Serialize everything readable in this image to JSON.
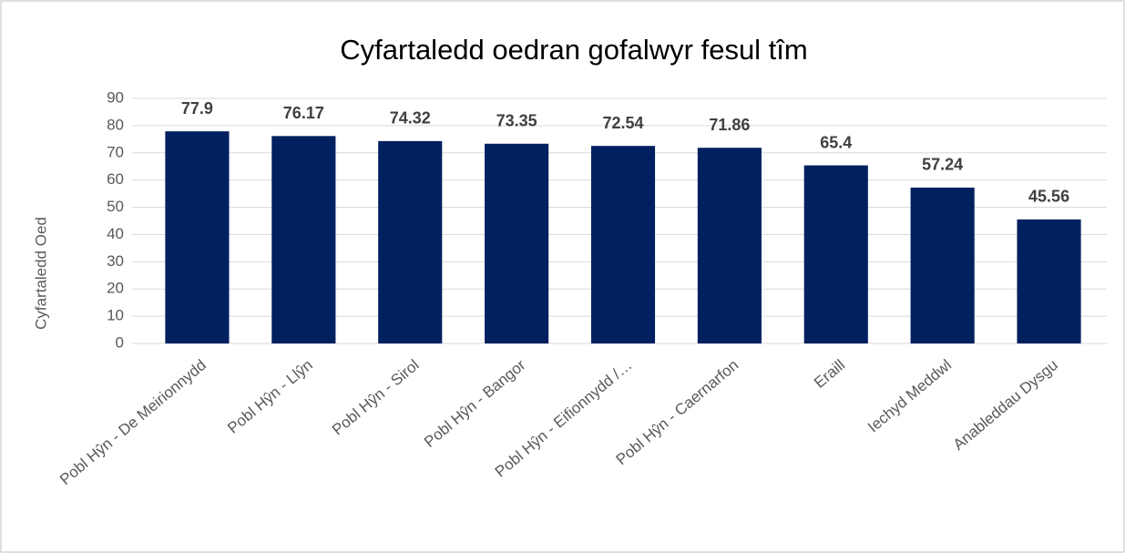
{
  "chart_data": {
    "type": "bar",
    "title": "Cyfartaledd oedran gofalwyr fesul tîm",
    "y_label": "Cyfartaledd Oed",
    "categories": [
      "Pobl Hŷn - De Meirionnydd",
      "Pobl Hŷn - Llŷn",
      "Pobl Hŷn - Sirol",
      "Pobl Hŷn - Bangor",
      "Pobl Hŷn - Eifionnydd /…",
      "Pobl Hŷn - Caernarfon",
      "Eraill",
      "Iechyd Meddwl",
      "Anableddau Dysgu"
    ],
    "values": [
      77.9,
      76.17,
      74.32,
      73.35,
      72.54,
      71.86,
      65.4,
      57.24,
      45.56
    ],
    "color": "#002060",
    "ylim": [
      0,
      90
    ],
    "yticks": [
      0,
      10,
      20,
      30,
      40,
      50,
      60,
      70,
      80,
      90
    ],
    "grid": true
  }
}
